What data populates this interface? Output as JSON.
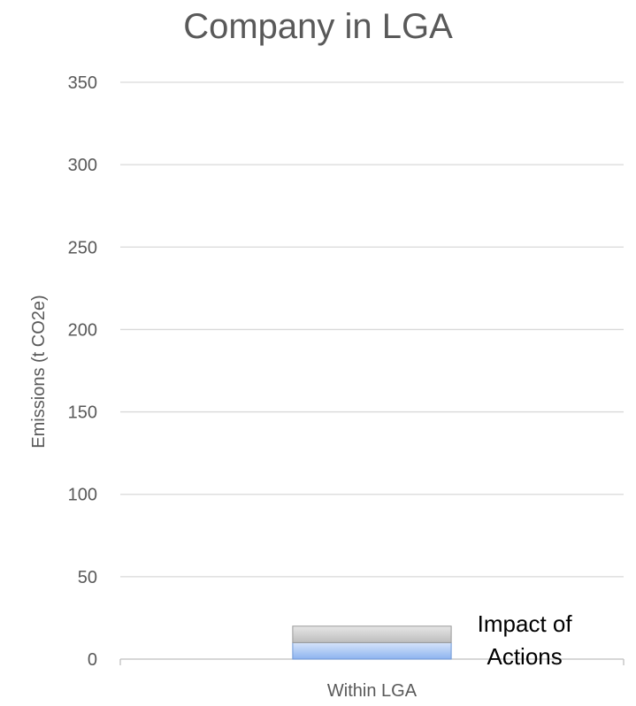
{
  "chart_data": {
    "type": "bar",
    "stacked": true,
    "title": "Company in LGA",
    "xlabel": "",
    "ylabel": "Emissions (t CO2e)",
    "ylim": [
      0,
      350
    ],
    "yticks": [
      0,
      50,
      100,
      150,
      200,
      250,
      300,
      350
    ],
    "grid": true,
    "categories": [
      "Within LGA"
    ],
    "series": [
      {
        "values": [
          10
        ],
        "color": "#a4c2f4"
      },
      {
        "values": [
          10
        ],
        "color": "#c9c9c9"
      }
    ],
    "annotations": [
      {
        "lines": [
          "Impact of",
          "Actions"
        ]
      }
    ]
  }
}
